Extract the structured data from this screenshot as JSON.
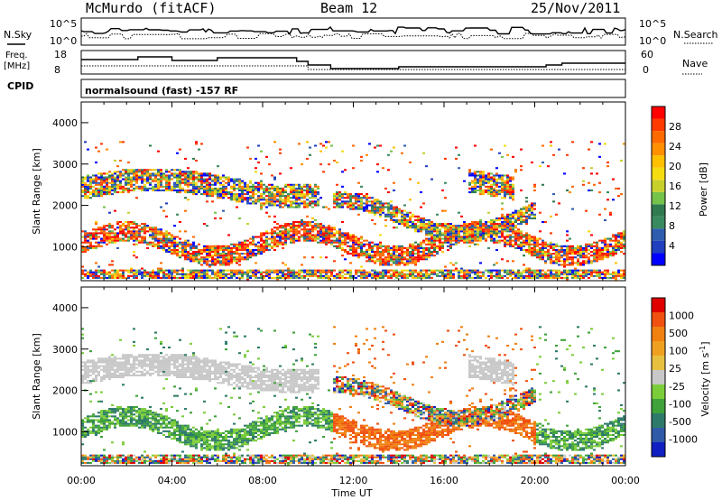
{
  "header": {
    "station": "McMurdo (fitACF)",
    "beam": "Beam 12",
    "date": "25/Nov/2011"
  },
  "top_panels": {
    "nsky_label": "N.Sky",
    "nsky_ticks": [
      "10^5",
      "10^0"
    ],
    "nsearch_label": "N.Search",
    "nsearch_ticks": [
      "10^5",
      "10^0"
    ],
    "freq_label": [
      "Freq.",
      "[MHz]"
    ],
    "freq_ticks": [
      "18",
      "8"
    ],
    "nave_label": "Nave",
    "nave_ticks": [
      "60",
      "0"
    ],
    "cpid_label": "CPID",
    "cpid_text": "normalsound (fast) -157 RF"
  },
  "chart_data": [
    {
      "type": "heatmap",
      "name": "Power",
      "xlabel": "Time UT",
      "ylabel": "Slant Range [km]",
      "x_ticks": [
        "00:00",
        "04:00",
        "08:00",
        "12:00",
        "16:00",
        "20:00",
        "00:00"
      ],
      "y_ticks": [
        1000,
        2000,
        3000,
        4000
      ],
      "ylim": [
        180,
        4500
      ],
      "xlim_hours": [
        0,
        24
      ],
      "colorbar": {
        "label": "Power [dB]",
        "ticks": [
          4,
          8,
          12,
          16,
          20,
          24,
          28
        ],
        "colors": [
          "#0000ff",
          "#1f3fbf",
          "#2e5db0",
          "#3a8a60",
          "#2f7a4f",
          "#74c34a",
          "#c7cf2c",
          "#f5dc10",
          "#ffc000",
          "#ff9000",
          "#ff6a00",
          "#ff3a00",
          "#ff0000"
        ]
      }
    },
    {
      "type": "heatmap",
      "name": "Velocity",
      "xlabel": "Time UT",
      "ylabel": "Slant Range [km]",
      "x_ticks": [
        "00:00",
        "04:00",
        "08:00",
        "12:00",
        "16:00",
        "20:00",
        "00:00"
      ],
      "y_ticks": [
        1000,
        2000,
        3000,
        4000
      ],
      "ylim": [
        180,
        4500
      ],
      "xlim_hours": [
        0,
        24
      ],
      "colorbar": {
        "label": "Velocity [m s^-1]",
        "ticks": [
          "1000",
          "500",
          "100",
          "25",
          "-25",
          "-100",
          "-500",
          "-1000"
        ],
        "colors": [
          "#1020c0",
          "#2f5aa8",
          "#2d7a6a",
          "#3fa23a",
          "#7ccd3a",
          "#c8c8c8",
          "#e8c040",
          "#f0a020",
          "#f08010",
          "#f05010",
          "#e00000"
        ]
      }
    }
  ]
}
